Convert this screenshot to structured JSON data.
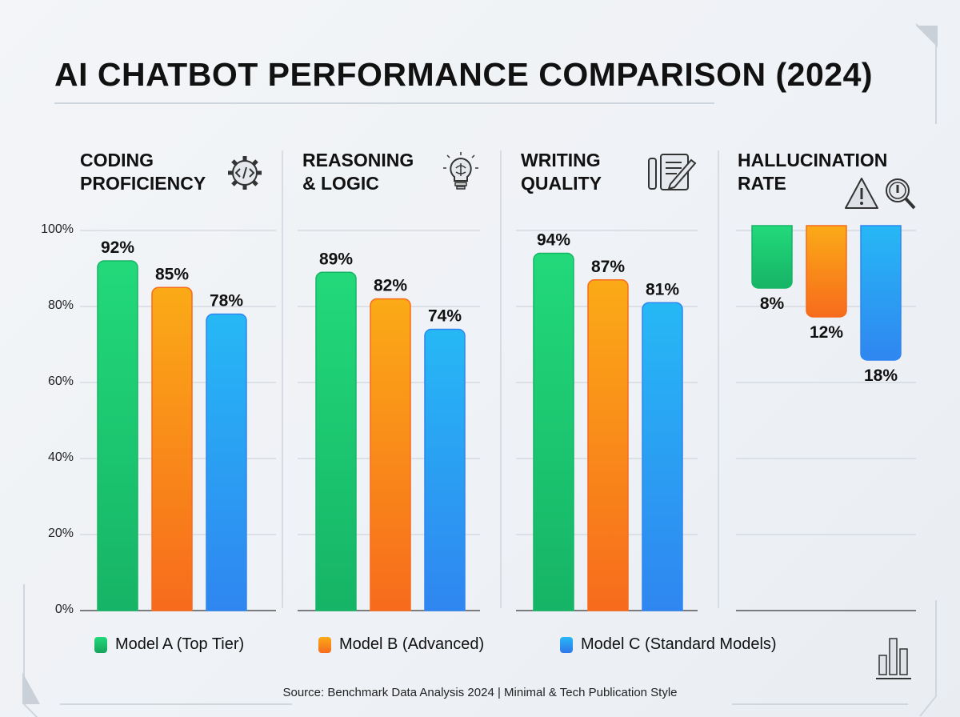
{
  "chart_data": {
    "type": "bar",
    "title": "AI CHATBOT PERFORMANCE COMPARISON (2024)",
    "ylim": [
      0,
      100
    ],
    "y_ticks": [
      "100%",
      "80%",
      "60%",
      "40%",
      "20%",
      "0%"
    ],
    "grid": true,
    "legend_placement": "bottom",
    "panels": [
      {
        "title_line1": "CODING",
        "title_line2": "PROFICIENCY",
        "icon": "gear-code-icon",
        "values": [
          92,
          85,
          78
        ],
        "labels": [
          "92%",
          "85%",
          "78%"
        ]
      },
      {
        "title_line1": "REASONING",
        "title_line2": "& LOGIC",
        "icon": "brain-lightbulb-icon",
        "values": [
          89,
          82,
          74
        ],
        "labels": [
          "89%",
          "82%",
          "74%"
        ]
      },
      {
        "title_line1": "WRITING",
        "title_line2": "QUALITY",
        "icon": "document-pen-icon",
        "values": [
          94,
          87,
          81
        ],
        "labels": [
          "94%",
          "87%",
          "81%"
        ]
      },
      {
        "title_line1": "HALLUCINATION",
        "title_line2": "RATE",
        "icon": "warning-magnifier-icon",
        "values": [
          8,
          12,
          18
        ],
        "labels": [
          "8%",
          "12%",
          "18%"
        ],
        "inverted": true
      }
    ],
    "series": [
      {
        "name": "Model A (Top Tier)",
        "color": "#16b466",
        "color_top": "#22d97a"
      },
      {
        "name": "Model B (Advanced)",
        "color": "#f76b1c",
        "color_top": "#fbaa17"
      },
      {
        "name": "Model C (Standard Models)",
        "color": "#2f86f0",
        "color_top": "#26b8f5"
      }
    ]
  },
  "source": "Source: Benchmark Data Analysis 2024 | Minimal & Tech Publication Style"
}
